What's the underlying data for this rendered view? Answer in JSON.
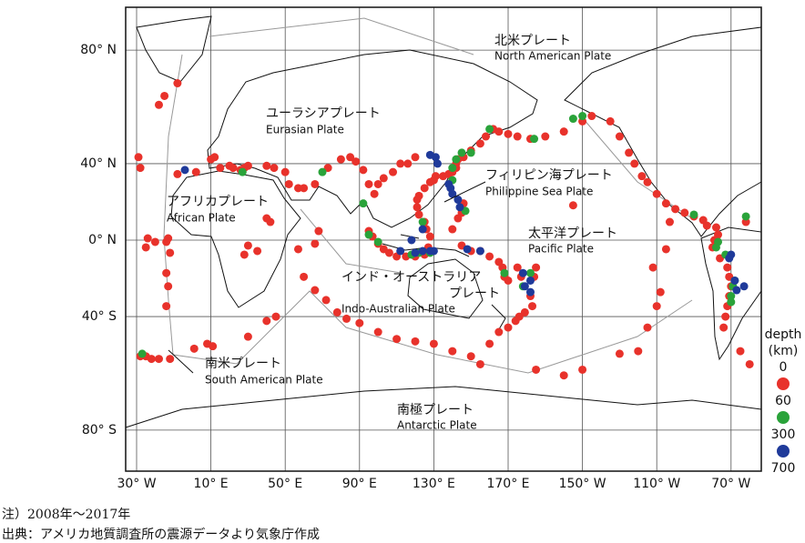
{
  "plates": [
    {
      "ja": "北米プレート",
      "en": "North American Plate"
    },
    {
      "ja": "ユーラシアプレート",
      "en": "Eurasian Plate"
    },
    {
      "ja": "フィリピン海プレート",
      "en": "Philippine Sea Plate"
    },
    {
      "ja": "アフリカプレート",
      "en": "African Plate"
    },
    {
      "ja": "太平洋プレート",
      "en": "Pacific Plate"
    },
    {
      "ja": [
        "インド・オーストラリア",
        "プレート"
      ],
      "en": "Indo-Australian Plate"
    },
    {
      "ja": "南米プレート",
      "en": "South American Plate"
    },
    {
      "ja": "南極プレート",
      "en": "Antarctic Plate"
    }
  ],
  "xticks": [
    {
      "value": -30,
      "label": "30° W"
    },
    {
      "value": 10,
      "label": "10° E"
    },
    {
      "value": 50,
      "label": "50° E"
    },
    {
      "value": 90,
      "label": "90° E"
    },
    {
      "value": 130,
      "label": "130° E"
    },
    {
      "value": 170,
      "label": "170° E"
    },
    {
      "value": -150,
      "label": "150° W"
    },
    {
      "value": -110,
      "label": "110° W"
    },
    {
      "value": -70,
      "label": "70° W"
    }
  ],
  "yticks": [
    {
      "value": 80,
      "label": "80° N"
    },
    {
      "value": 40,
      "label": "40° N"
    },
    {
      "value": 0,
      "label": "0° N"
    },
    {
      "value": -40,
      "label": "40° S"
    },
    {
      "value": -80,
      "label": "80° S"
    }
  ],
  "legend": {
    "title": [
      "depth",
      "(km)"
    ],
    "bins": [
      0,
      60,
      300,
      700
    ],
    "colors": [
      "#e8322b",
      "#2aa33a",
      "#1f3a9a"
    ]
  },
  "events": [
    [
      -8,
      71,
      0
    ],
    [
      -15,
      67,
      0
    ],
    [
      -18,
      64,
      0
    ],
    [
      -29,
      43,
      0
    ],
    [
      -28,
      38,
      0
    ],
    [
      -14,
      -1,
      0
    ],
    [
      -13,
      1,
      0
    ],
    [
      -20,
      -1,
      0
    ],
    [
      -24,
      1,
      0
    ],
    [
      -25,
      -4,
      0
    ],
    [
      -12,
      -7,
      0
    ],
    [
      -14,
      -18,
      0
    ],
    [
      -13,
      -25,
      0
    ],
    [
      -14,
      -35,
      0
    ],
    [
      -28,
      -57,
      0
    ],
    [
      -25,
      -57,
      0
    ],
    [
      -22,
      -58,
      0
    ],
    [
      -18,
      -58,
      0
    ],
    [
      -12,
      -58,
      0
    ],
    [
      1,
      -54,
      0
    ],
    [
      8,
      -52,
      0
    ],
    [
      11,
      -53,
      0
    ],
    [
      12,
      43,
      0
    ],
    [
      15,
      38,
      0
    ],
    [
      20,
      39,
      0
    ],
    [
      22,
      38,
      0
    ],
    [
      26,
      37,
      0
    ],
    [
      28,
      38,
      0
    ],
    [
      30,
      39,
      0
    ],
    [
      40,
      39,
      0
    ],
    [
      44,
      38,
      0
    ],
    [
      50,
      36,
      0
    ],
    [
      52,
      30,
      0
    ],
    [
      57,
      28,
      0
    ],
    [
      60,
      28,
      0
    ],
    [
      66,
      30,
      0
    ],
    [
      73,
      38,
      0
    ],
    [
      80,
      42,
      0
    ],
    [
      85,
      43,
      0
    ],
    [
      88,
      41,
      0
    ],
    [
      92,
      37,
      0
    ],
    [
      95,
      30,
      0
    ],
    [
      98,
      25,
      0
    ],
    [
      100,
      30,
      0
    ],
    [
      103,
      33,
      0
    ],
    [
      108,
      36,
      0
    ],
    [
      112,
      40,
      0
    ],
    [
      116,
      40,
      0
    ],
    [
      120,
      43,
      0
    ],
    [
      -8,
      35,
      0
    ],
    [
      2,
      36,
      0
    ],
    [
      10,
      42,
      0
    ],
    [
      30,
      -3,
      0
    ],
    [
      28,
      -8,
      0
    ],
    [
      35,
      -6,
      0
    ],
    [
      40,
      12,
      0
    ],
    [
      42,
      10,
      0
    ],
    [
      57,
      -5,
      0
    ],
    [
      66,
      -2,
      0
    ],
    [
      68,
      5,
      0
    ],
    [
      60,
      -20,
      0
    ],
    [
      66,
      -27,
      0
    ],
    [
      72,
      -32,
      0
    ],
    [
      78,
      -38,
      0
    ],
    [
      83,
      -41,
      0
    ],
    [
      90,
      -43,
      0
    ],
    [
      100,
      -47,
      0
    ],
    [
      110,
      -50,
      0
    ],
    [
      120,
      -51,
      0
    ],
    [
      130,
      -52,
      0
    ],
    [
      140,
      -55,
      0
    ],
    [
      150,
      -57,
      0
    ],
    [
      155,
      -60,
      0
    ],
    [
      40,
      -42,
      0
    ],
    [
      45,
      -40,
      0
    ],
    [
      30,
      -49,
      0
    ],
    [
      95,
      5,
      0
    ],
    [
      97,
      2,
      0
    ],
    [
      100,
      -2,
      0
    ],
    [
      103,
      -5,
      0
    ],
    [
      106,
      -7,
      0
    ],
    [
      110,
      -9,
      0
    ],
    [
      115,
      -9,
      0
    ],
    [
      120,
      -9,
      0
    ],
    [
      125,
      -8,
      0
    ],
    [
      127,
      -4,
      0
    ],
    [
      128,
      2,
      0
    ],
    [
      126,
      6,
      0
    ],
    [
      125,
      10,
      0
    ],
    [
      122,
      14,
      0
    ],
    [
      121,
      18,
      0
    ],
    [
      121,
      22,
      0
    ],
    [
      122,
      24,
      0
    ],
    [
      125,
      28,
      0
    ],
    [
      128,
      31,
      0
    ],
    [
      130,
      32,
      0
    ],
    [
      131,
      34,
      0
    ],
    [
      135,
      34,
      0
    ],
    [
      138,
      35,
      0
    ],
    [
      140,
      36,
      0
    ],
    [
      142,
      38,
      0
    ],
    [
      142,
      40,
      0
    ],
    [
      143,
      42,
      0
    ],
    [
      146,
      43,
      0
    ],
    [
      150,
      46,
      0
    ],
    [
      155,
      49,
      0
    ],
    [
      158,
      52,
      0
    ],
    [
      162,
      55,
      0
    ],
    [
      165,
      54,
      0
    ],
    [
      170,
      53,
      0
    ],
    [
      175,
      52,
      0
    ],
    [
      -178,
      51,
      0
    ],
    [
      -170,
      52,
      0
    ],
    [
      -160,
      54,
      0
    ],
    [
      -150,
      58,
      0
    ],
    [
      -145,
      60,
      0
    ],
    [
      -135,
      58,
      0
    ],
    [
      -130,
      52,
      0
    ],
    [
      -125,
      45,
      0
    ],
    [
      -122,
      40,
      0
    ],
    [
      -118,
      34,
      0
    ],
    [
      -115,
      31,
      0
    ],
    [
      -110,
      25,
      0
    ],
    [
      -105,
      20,
      0
    ],
    [
      -100,
      17,
      0
    ],
    [
      -95,
      15,
      0
    ],
    [
      -90,
      13,
      0
    ],
    [
      -85,
      11,
      0
    ],
    [
      -83,
      8,
      0
    ],
    [
      -78,
      7,
      0
    ],
    [
      -77,
      3,
      0
    ],
    [
      -79,
      0,
      0
    ],
    [
      -80,
      -4,
      0
    ],
    [
      -76,
      -10,
      0
    ],
    [
      -72,
      -15,
      0
    ],
    [
      -71,
      -20,
      0
    ],
    [
      -70,
      -25,
      0
    ],
    [
      -71,
      -30,
      0
    ],
    [
      -72,
      -35,
      0
    ],
    [
      -73,
      -40,
      0
    ],
    [
      -74,
      -45,
      0
    ],
    [
      -65,
      -55,
      0
    ],
    [
      -60,
      -60,
      0
    ],
    [
      -62,
      10,
      0
    ],
    [
      145,
      15,
      0
    ],
    [
      146,
      20,
      0
    ],
    [
      143,
      12,
      0
    ],
    [
      140,
      6,
      0
    ],
    [
      145,
      -3,
      0
    ],
    [
      150,
      -6,
      0
    ],
    [
      155,
      -6,
      0
    ],
    [
      160,
      -9,
      0
    ],
    [
      165,
      -12,
      0
    ],
    [
      167,
      -15,
      0
    ],
    [
      168,
      -20,
      0
    ],
    [
      170,
      -22,
      0
    ],
    [
      175,
      -15,
      0
    ],
    [
      177,
      -20,
      0
    ],
    [
      -176,
      -20,
      0
    ],
    [
      -175,
      -15,
      0
    ],
    [
      -178,
      -30,
      0
    ],
    [
      -177,
      -35,
      0
    ],
    [
      179,
      -38,
      0
    ],
    [
      176,
      -40,
      0
    ],
    [
      174,
      -42,
      0
    ],
    [
      170,
      -45,
      0
    ],
    [
      165,
      -47,
      0
    ],
    [
      160,
      -52,
      0
    ],
    [
      -175,
      -62,
      0
    ],
    [
      -160,
      -64,
      0
    ],
    [
      -150,
      -62,
      0
    ],
    [
      -130,
      -56,
      0
    ],
    [
      -120,
      -55,
      0
    ],
    [
      -115,
      -45,
      0
    ],
    [
      -110,
      -35,
      0
    ],
    [
      -108,
      -28,
      0
    ],
    [
      -112,
      -15,
      0
    ],
    [
      -105,
      -5,
      0
    ],
    [
      -103,
      10,
      0
    ],
    [
      -155,
      19,
      0
    ],
    [
      -27,
      -56,
      1
    ],
    [
      27,
      36,
      1
    ],
    [
      70,
      36,
      1
    ],
    [
      92,
      20,
      1
    ],
    [
      95,
      3,
      1
    ],
    [
      122,
      -7,
      1
    ],
    [
      128,
      -7,
      1
    ],
    [
      124,
      10,
      1
    ],
    [
      140,
      38,
      1
    ],
    [
      142,
      42,
      1
    ],
    [
      145,
      45,
      1
    ],
    [
      150,
      45,
      1
    ],
    [
      160,
      55,
      1
    ],
    [
      -176,
      51,
      1
    ],
    [
      -155,
      59,
      1
    ],
    [
      -150,
      60,
      1
    ],
    [
      -90,
      14,
      1
    ],
    [
      -68,
      -22,
      1
    ],
    [
      -69,
      -25,
      1
    ],
    [
      -70,
      -30,
      1
    ],
    [
      -70,
      -33,
      1
    ],
    [
      178,
      -25,
      1
    ],
    [
      168,
      -18,
      1
    ],
    [
      -178,
      -18,
      1
    ],
    [
      -77,
      -1,
      1
    ],
    [
      -78,
      -4,
      1
    ],
    [
      -73,
      -8,
      1
    ],
    [
      100,
      -1,
      1
    ],
    [
      118,
      -8,
      1
    ],
    [
      140,
      32,
      1
    ],
    [
      147,
      16,
      1
    ],
    [
      -62,
      13,
      1
    ],
    [
      -4,
      37,
      2
    ],
    [
      128,
      44,
      2
    ],
    [
      131,
      43,
      2
    ],
    [
      132,
      40,
      2
    ],
    [
      138,
      30,
      2
    ],
    [
      139,
      28,
      2
    ],
    [
      140,
      25,
      2
    ],
    [
      143,
      22,
      2
    ],
    [
      144,
      18,
      2
    ],
    [
      124,
      -6,
      2
    ],
    [
      128,
      -6,
      2
    ],
    [
      120,
      -7,
      2
    ],
    [
      112,
      -6,
      2
    ],
    [
      118,
      0,
      2
    ],
    [
      124,
      6,
      2
    ],
    [
      178,
      -18,
      2
    ],
    [
      -178,
      -22,
      2
    ],
    [
      179,
      -25,
      2
    ],
    [
      -178,
      -28,
      2
    ],
    [
      -68,
      -22,
      2
    ],
    [
      -67,
      -27,
      2
    ],
    [
      -63,
      -25,
      2
    ],
    [
      -70,
      -8,
      2
    ],
    [
      -71,
      -10,
      2
    ],
    [
      148,
      -5,
      2
    ],
    [
      155,
      -6,
      2
    ],
    [
      130,
      -6,
      2
    ]
  ],
  "notes": [
    "注）2008年～2017年",
    "出典：アメリカ地質調査所の震源データより気象庁作成"
  ]
}
